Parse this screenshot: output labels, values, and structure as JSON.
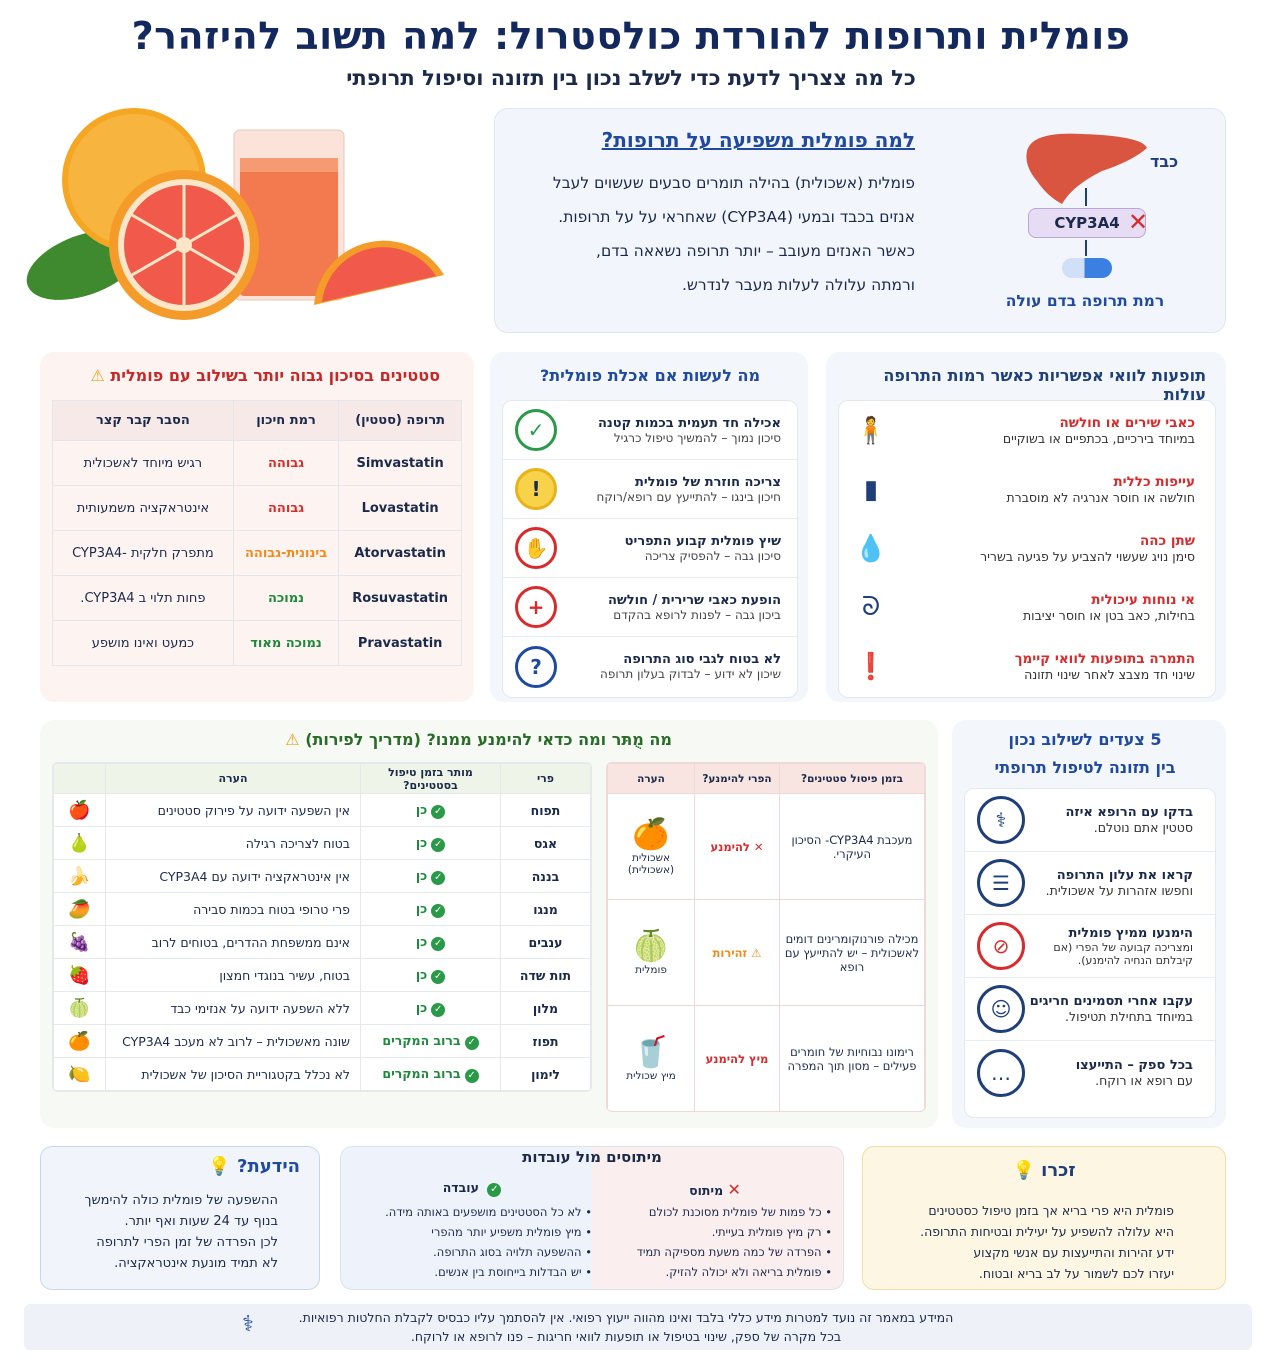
{
  "header": {
    "title": "פומלית ותרופות להורדת כולסטרול: למה תשוב להיזהר?",
    "subtitle": "כל מה צצריך לדעת כדי לשלב נכון בין תזונה וסיפול תרופתי"
  },
  "why": {
    "title": "למה פומלית משפיעה על תרופות?",
    "lines": [
      "פומלית (אשכולית) בהילה תומרים סבעים שעשוים לעבל",
      "אנזים בכבד ובמעי (CYP3A4) שאחראי על על תרופות.",
      "כאשר האנזים מעובב – יותר תרופה נשאאה בדם,",
      "ורמתה עלולה לעלות מעבר לנדרש."
    ],
    "diagram": {
      "liver_label": "כבד",
      "enzyme_label": "CYP3A4",
      "result_label": "רמת תרופה בדם עולה"
    }
  },
  "statins": {
    "title": "סטטינים בסיכון גבוה יותר בשילוב עם פומלית",
    "headers": [
      "תרופה (סטטין)",
      "רמת חיכון",
      "הסבר קבר קצר"
    ],
    "rows": [
      {
        "drug": "Simvastatin",
        "risk": "גבוהה",
        "level": "high",
        "note": "רגיש מיוחד לאשכולית"
      },
      {
        "drug": "Lovastatin",
        "risk": "גבוהה",
        "level": "high",
        "note": "אינטראקציה משמעותית"
      },
      {
        "drug": "Atorvastatin",
        "risk": "בינונית-גבוהה",
        "level": "mid",
        "note": "מתפרק חלקית -CYP3A4"
      },
      {
        "drug": "Rosuvastatin",
        "risk": "נמוכה",
        "level": "low",
        "note": "פחות תלוי ב CYP3A4."
      },
      {
        "drug": "Pravastatin",
        "risk": "נמוכה מאוד",
        "level": "low",
        "note": "כמעט ואינו מושפע"
      }
    ]
  },
  "actions": {
    "title": "מה לעשות אם אכלת פומלית?",
    "items": [
      {
        "main": "אכילה חד תעמית בכמות קטנה",
        "sub": "סיכון נמוך – להמשיך טיפול כרגיל",
        "icon": "✓",
        "color": "#2a9a48"
      },
      {
        "main": "צריכה חוזרת של פומלית",
        "sub": "חיכון בינגו – להתייעץ עם רופא/רוקח",
        "icon": "!",
        "color": "#e8b21a"
      },
      {
        "main": "שיץ פומלית קבוע התפריט",
        "sub": "סיכון גבה – להפסיק צריכה",
        "icon": "✋",
        "color": "#d92b2b"
      },
      {
        "main": "הופעת כאבי שרירית / חולשה",
        "sub": "ביכון גבה – לפנות לרופא בהקדם",
        "icon": "+",
        "color": "#d92b2b"
      },
      {
        "main": "לא בטוח לגבי סוג התרופה",
        "sub": "שיכון לא ידוע – לבדוק בעלון תרופה",
        "icon": "?",
        "color": "#1f4aa0"
      }
    ]
  },
  "side_effects": {
    "title": "תופעות לוואי אפשריות כאשר רמות התרופה עולות",
    "items": [
      {
        "main": "כאבי שירים או חולשה",
        "sub": "במיוחד בירכיים, בכתפיים או בשוקיים",
        "icon": "person-icon"
      },
      {
        "main": "עייפות כללית",
        "sub": "חולשה או חוסר אנרגיה לא מוסברת",
        "icon": "battery-icon"
      },
      {
        "main": "שתן כהה",
        "sub": "סימן נויג שעשוי להצביע על פגיעה בשריר",
        "icon": "drop-icon"
      },
      {
        "main": "אי נוחות עיכולית",
        "sub": "בחילות, כאב בטן או חוסר יציבות",
        "icon": "stomach-icon"
      },
      {
        "main": "התמרה בתופעות לוואי קיימך",
        "sub": "שינוי חד מצבצ לאחר שינוי תזונה",
        "icon": "alert-icon"
      }
    ]
  },
  "fruit_guide": {
    "title": "מה מֻתּר ומה כדאי להימנע ממנו? (מדריך לפירות)",
    "headers": [
      "פרי",
      "מותר בזמן טיפול בסטטינים?",
      "הערה"
    ],
    "rows": [
      {
        "fruit": "תפוח",
        "ok": "כן",
        "note": "אין השפעה ידועה על פירוק סטטינים",
        "emoji": "🍎"
      },
      {
        "fruit": "אגס",
        "ok": "כן",
        "note": "בטוח לצריכה רגילה",
        "emoji": "🍐"
      },
      {
        "fruit": "בננה",
        "ok": "כן",
        "note": "אין אינטראקציה ידועה עם CYP3A4",
        "emoji": "🍌"
      },
      {
        "fruit": "מנגו",
        "ok": "כן",
        "note": "פרי טרופי בטוח בכמות סבירה",
        "emoji": "🥭"
      },
      {
        "fruit": "ענבים",
        "ok": "כן",
        "note": "אינם ממשפחת ההדרים, בטוחים לרוב",
        "emoji": "🍇"
      },
      {
        "fruit": "תות שדה",
        "ok": "כן",
        "note": "בטוח, עשיר בנוגדי חמצון",
        "emoji": "🍓"
      },
      {
        "fruit": "מלון",
        "ok": "כן",
        "note": "ללא השפעה ידועה על אנזימי כבד",
        "emoji": "🍈"
      },
      {
        "fruit": "תפוז",
        "ok": "ברוב המקרים",
        "note": "שונה מאשכולית – לרוב לא מעכב CYP3A4",
        "emoji": "🍊"
      },
      {
        "fruit": "לימון",
        "ok": "ברוב המקרים",
        "note": "לא נכלל בקטגוריית הסיכון של אשכולית",
        "emoji": "🍋"
      }
    ],
    "avoid": {
      "headers": [
        "בזמן פיסול סטטינים?",
        "הפרי להימנע?",
        "הערה"
      ],
      "rows": [
        {
          "reason": "מעכבת CYP3A4- הסיכון העיקרי.",
          "verdict": "להימנע",
          "name": "אשכולית (אשכולית)",
          "emoji": "🍊"
        },
        {
          "reason": "מכילה פורנוקומרינים דומים לאשכולית – יש להתייעץ עם רופא",
          "verdict": "זהירות",
          "name": "פומלית",
          "emoji": "🍈"
        },
        {
          "reason": "רימונו נבוחיות של חומרים פעילים – מסון תוך המפרה",
          "verdict": "מיץ להימנע",
          "name": "מיץ שכולית",
          "emoji": "🥤"
        }
      ]
    }
  },
  "steps": {
    "title_line1": "5 צעדים לשילוב נכון",
    "title_line2": "בין תזונה לטיפול תרופתי",
    "items": [
      {
        "main": "בדקו עם הרופא איזה",
        "sub": "סטטין אתם נוטלם.",
        "icon": "stethoscope-icon"
      },
      {
        "main": "קראו את עלון התרופה",
        "sub": "וחפשו אזהרות על אשכולית.",
        "icon": "document-icon"
      },
      {
        "main": "הימנעו ממיץ פומלית",
        "sub": "ומצריכה קבועה של הפרי (אם קיבלתם הנחיה להימנע).",
        "icon": "no-juice-icon"
      },
      {
        "main": "עקבו אחרי תסמינים חריגים",
        "sub": "במיוחד בתחילת תטיפול.",
        "icon": "user-icon"
      },
      {
        "main": "בכל ספק – התייעצו",
        "sub": "עם רופא או רוקח.",
        "icon": "chat-icon"
      }
    ]
  },
  "did_you_know": {
    "title": "הידעת?",
    "lines": [
      "ההשפעה של פומלית כולה להימשך",
      "בנוף עד 24 שעות ואף יותר.",
      "לכן הפרדה של זמן הפרי לתרופה",
      "לא תמיד מונעת אינטראקציה."
    ]
  },
  "myths": {
    "title": "מיתוסים מול עובדות",
    "myth_label": "מיתוס",
    "fact_label": "עובדה",
    "myth_items": [
      "כל פמות של פומלית מסוכנת לכולם",
      "רק מיץ פומלית בעייתי.",
      "הפרדה של כמה משעת מספיקה תמיד",
      "פומלית בריאה ולא יכולה להזיק."
    ],
    "fact_items": [
      "לא כל הסטטינים מושפעים באותה מידה.",
      "מיץ פומלית משפיע יותר מהפרי",
      "ההשפעה תלויה בסוג התרופה.",
      "יש הבדלות בייחוסת בין אנשים."
    ]
  },
  "remember": {
    "title": "זכרו",
    "lines": [
      "פומלית היא פרי בריא אך בזמן טיפול כסטטינים",
      "היא עלולה להשפיע על יעילית ובטיחות התרופה.",
      "ידע זהירות והתייעצות עם אנשי מקצוע",
      "יעזרו לכם לשמור על לב בריא ובטוח."
    ]
  },
  "footer": {
    "line1": "המידע במאמר זה נועד למטרות מידע כללי בלבד ואינו מהווה ייעוץ רפואי. אין להסתמך עליו כבסיס לקבלת החלטות רפואיות.",
    "line2": "בכל מקרה של ספק, שינוי בטיפול או תופעות לוואי חריגות – פנו לרופא או לרוקח."
  },
  "colors": {
    "navy": "#13285c",
    "red": "#d92b2b",
    "green": "#1c8a3a",
    "orange": "#f08a1c"
  }
}
